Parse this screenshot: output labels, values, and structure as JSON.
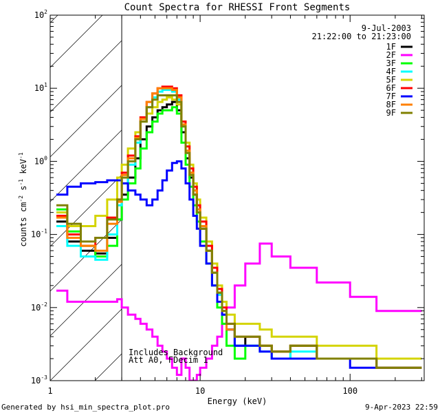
{
  "chart_data": {
    "type": "line",
    "title": "Count Spectra for RHESSI Front Segments",
    "xlabel": "Energy (keV)",
    "ylabel_parts": [
      "counts cm",
      "-2",
      " s",
      "-1",
      " keV",
      "-1"
    ],
    "xscale": "log",
    "yscale": "log",
    "xlim": [
      1,
      312
    ],
    "ylim": [
      0.001,
      100
    ],
    "x_ticks": [
      {
        "value": 1,
        "label": "1"
      },
      {
        "value": 10,
        "label": "10"
      },
      {
        "value": 100,
        "label": "100"
      }
    ],
    "y_ticks": [
      {
        "value": 100,
        "base": "10",
        "exp": "2"
      },
      {
        "value": 10,
        "base": "10",
        "exp": "1"
      },
      {
        "value": 1,
        "base": "10",
        "exp": "0"
      },
      {
        "value": 0.1,
        "base": "10",
        "exp": "-1"
      },
      {
        "value": 0.01,
        "base": "10",
        "exp": "-2"
      },
      {
        "value": 0.001,
        "base": "10",
        "exp": "-3"
      }
    ],
    "hatched_region_keV": [
      1,
      3
    ],
    "date": "9-Jul-2003",
    "time_range": "21:22:00 to 21:23:00",
    "annotations": [
      "Includes Background",
      "Att A0, FDecim 1"
    ],
    "legend_placement": "top-right",
    "energy_edges": [
      1.1,
      1.3,
      1.6,
      2.0,
      2.4,
      2.8,
      3.0,
      3.3,
      3.7,
      4.0,
      4.4,
      4.8,
      5.2,
      5.6,
      6.0,
      6.5,
      7.0,
      7.5,
      8.0,
      8.5,
      9.0,
      9.5,
      10,
      11,
      12,
      13,
      14,
      15,
      17,
      20,
      25,
      30,
      40,
      60,
      100,
      150,
      300
    ],
    "series": [
      {
        "name": "1F",
        "color": "#000000",
        "values": [
          0.15,
          0.08,
          0.06,
          0.055,
          0.09,
          0.16,
          0.35,
          0.6,
          1.1,
          2.0,
          3.0,
          4.0,
          5.0,
          5.5,
          6.0,
          6.5,
          5.0,
          2.5,
          1.1,
          0.6,
          0.35,
          0.2,
          0.12,
          0.06,
          0.03,
          0.015,
          0.008,
          0.005,
          0.003,
          0.004,
          0.003,
          0.0025,
          0.003,
          0.002,
          0.002,
          0.0015
        ]
      },
      {
        "name": "2F",
        "color": "#ff00ff",
        "values": [
          0.017,
          0.012,
          0.012,
          0.012,
          0.012,
          0.013,
          0.01,
          0.008,
          0.007,
          0.006,
          0.005,
          0.004,
          0.003,
          0.0025,
          0.002,
          0.0015,
          0.0012,
          0.002,
          0.0015,
          0.001,
          0.001,
          0.0012,
          0.0015,
          0.002,
          0.003,
          0.004,
          0.006,
          0.01,
          0.02,
          0.04,
          0.075,
          0.05,
          0.035,
          0.022,
          0.014,
          0.009
        ]
      },
      {
        "name": "3F",
        "color": "#00ff00",
        "values": [
          0.22,
          0.11,
          0.07,
          0.05,
          0.07,
          0.16,
          0.3,
          0.5,
          0.8,
          1.5,
          2.5,
          3.5,
          4.5,
          5.0,
          5.0,
          5.5,
          4.5,
          1.8,
          0.9,
          0.45,
          0.25,
          0.15,
          0.08,
          0.04,
          0.02,
          0.01,
          0.006,
          0.003,
          0.002,
          0.003,
          0.003,
          0.002,
          0.003,
          0.002,
          0.002,
          0.0015
        ]
      },
      {
        "name": "4F",
        "color": "#00ffff",
        "values": [
          0.13,
          0.07,
          0.05,
          0.045,
          0.1,
          0.25,
          0.5,
          0.9,
          1.8,
          3.5,
          5.5,
          7.5,
          9.0,
          9.5,
          9.5,
          9.0,
          7.0,
          3.0,
          1.3,
          0.7,
          0.4,
          0.22,
          0.13,
          0.06,
          0.03,
          0.015,
          0.008,
          0.005,
          0.003,
          0.003,
          0.0025,
          0.002,
          0.0025,
          0.002,
          0.002,
          0.0015
        ]
      },
      {
        "name": "5F",
        "color": "#d4d400",
        "values": [
          0.2,
          0.13,
          0.13,
          0.18,
          0.3,
          0.6,
          0.9,
          1.5,
          2.5,
          3.5,
          4.5,
          5.5,
          6.5,
          7.0,
          7.5,
          7.0,
          6.0,
          3.5,
          1.8,
          0.9,
          0.5,
          0.3,
          0.17,
          0.08,
          0.04,
          0.02,
          0.012,
          0.008,
          0.006,
          0.006,
          0.005,
          0.004,
          0.004,
          0.003,
          0.003,
          0.002
        ]
      },
      {
        "name": "6F",
        "color": "#ff0000",
        "values": [
          0.18,
          0.1,
          0.07,
          0.09,
          0.17,
          0.3,
          0.7,
          1.2,
          2.2,
          4.0,
          6.5,
          8.5,
          10,
          10.5,
          10.5,
          10,
          8.0,
          3.5,
          1.6,
          0.8,
          0.45,
          0.25,
          0.15,
          0.07,
          0.035,
          0.018,
          0.01,
          0.006,
          0.004,
          0.004,
          0.003,
          0.0025,
          0.003,
          0.002,
          0.002,
          0.0015
        ]
      },
      {
        "name": "7F",
        "color": "#0000ff",
        "values": [
          0.35,
          0.45,
          0.5,
          0.52,
          0.55,
          0.55,
          0.5,
          0.4,
          0.35,
          0.3,
          0.25,
          0.3,
          0.4,
          0.55,
          0.75,
          0.95,
          1.0,
          0.8,
          0.5,
          0.3,
          0.18,
          0.12,
          0.07,
          0.04,
          0.02,
          0.012,
          0.008,
          0.005,
          0.003,
          0.003,
          0.0025,
          0.002,
          0.002,
          0.002,
          0.0015,
          0.0015
        ]
      },
      {
        "name": "8F",
        "color": "#ff8000",
        "values": [
          0.17,
          0.09,
          0.07,
          0.06,
          0.14,
          0.28,
          0.65,
          1.1,
          2.1,
          3.8,
          6.5,
          8.5,
          10,
          10,
          10,
          9.5,
          7.5,
          3.2,
          1.4,
          0.7,
          0.4,
          0.22,
          0.13,
          0.06,
          0.03,
          0.016,
          0.009,
          0.005,
          0.004,
          0.004,
          0.003,
          0.0025,
          0.003,
          0.002,
          0.002,
          0.0015
        ]
      },
      {
        "name": "9F",
        "color": "#808000",
        "values": [
          0.25,
          0.14,
          0.08,
          0.09,
          0.16,
          0.3,
          0.6,
          1.0,
          2.0,
          3.5,
          5.5,
          7.0,
          8.0,
          8.0,
          8.0,
          8.0,
          6.5,
          3.0,
          1.3,
          0.65,
          0.35,
          0.2,
          0.12,
          0.06,
          0.03,
          0.016,
          0.009,
          0.006,
          0.004,
          0.004,
          0.003,
          0.0025,
          0.003,
          0.002,
          0.002,
          0.0015
        ]
      }
    ]
  },
  "footer": {
    "generated_by": "Generated by hsi_min_spectra_plot.pro",
    "timestamp": "9-Apr-2023 22:59"
  }
}
